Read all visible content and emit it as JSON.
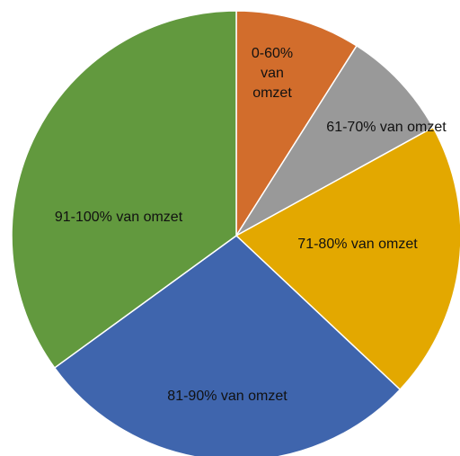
{
  "chart_data": {
    "type": "pie",
    "categories": [
      "0-60% van omzet",
      "61-70% van omzet",
      "71-80% van omzet",
      "81-90% van omzet",
      "91-100% van omzet"
    ],
    "values": [
      9,
      8,
      20,
      28,
      35
    ],
    "colors": [
      "#d26d2c",
      "#999999",
      "#e3a800",
      "#3f65ad",
      "#62993e"
    ]
  }
}
